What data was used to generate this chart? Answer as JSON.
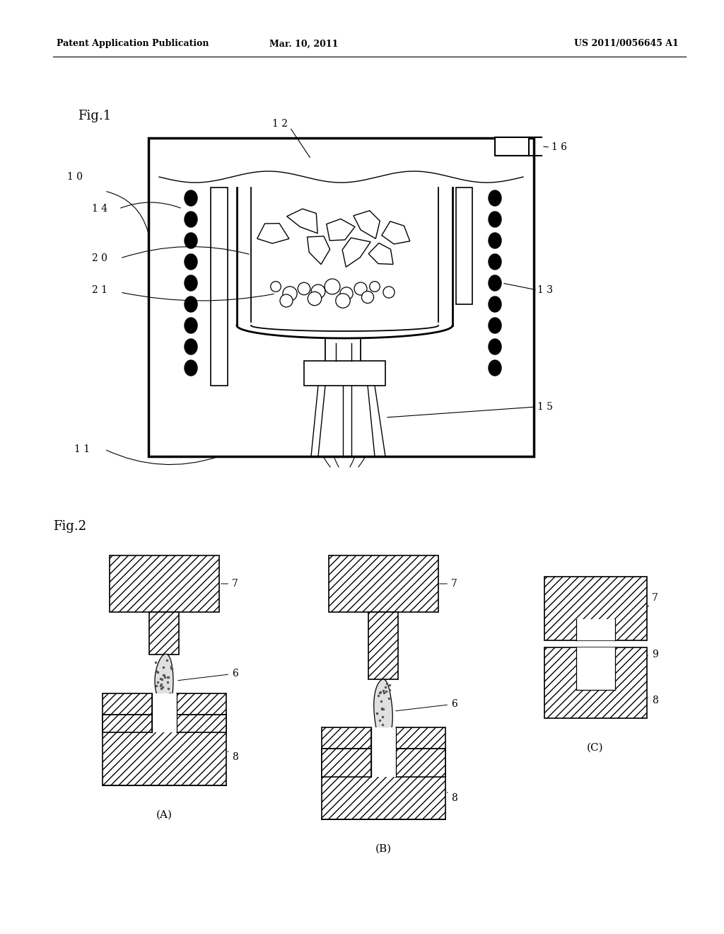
{
  "header_left": "Patent Application Publication",
  "header_center": "Mar. 10, 2011",
  "header_right": "US 2011/0056645 A1",
  "fig1_label": "Fig.1",
  "fig2_label": "Fig.2",
  "background_color": "#ffffff",
  "line_color": "#000000"
}
